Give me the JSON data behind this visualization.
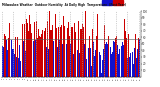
{
  "title": "Milwaukee Weather  Outdoor Humidity  At Daily High  Temperature  (Past Year)",
  "background_color": "#ffffff",
  "bar_color_above": "#cc0000",
  "bar_color_below": "#1111cc",
  "grid_color": "#aaaaaa",
  "ylim": [
    0,
    100
  ],
  "avg": 58,
  "n_bars": 365,
  "seed": 42,
  "yticks": [
    10,
    20,
    30,
    40,
    50,
    60,
    70,
    80,
    90,
    100
  ],
  "dashed_every": 30,
  "bar_width": 0.9
}
